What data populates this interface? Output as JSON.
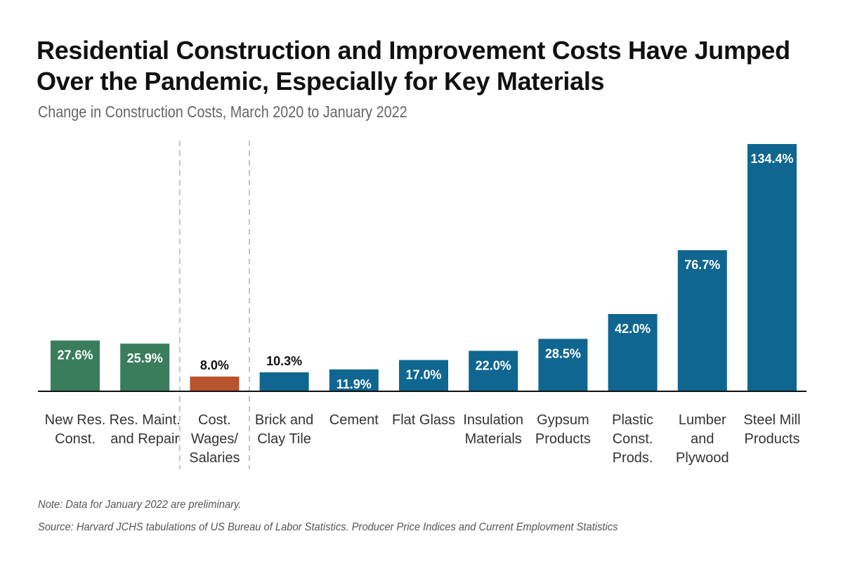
{
  "chart_data": {
    "type": "bar",
    "title": "Residential Construction and Improvement Costs Have Jumped Over the Pandemic, Especially for Key Materials",
    "subtitle": "Change in Construction Costs, March 2020 to January 2022",
    "categories": [
      [
        "New Res.",
        "Const."
      ],
      [
        "Res. Maint.",
        "and Repair"
      ],
      [
        "Cost.",
        "Wages/",
        "Salaries"
      ],
      [
        "Brick and",
        "Clay Tile"
      ],
      [
        "Cement"
      ],
      [
        "Flat Glass"
      ],
      [
        "Insulation",
        "Materials"
      ],
      [
        "Gypsum",
        "Products"
      ],
      [
        "Plastic",
        "Const.",
        "Prods."
      ],
      [
        "Lumber",
        "and",
        "Plywood"
      ],
      [
        "Steel Mill",
        "Products"
      ]
    ],
    "values": [
      27.6,
      25.9,
      8.0,
      10.3,
      11.9,
      17.0,
      22.0,
      28.5,
      42.0,
      76.7,
      134.4
    ],
    "value_labels": [
      "27.6%",
      "25.9%",
      "8.0%",
      "10.3%",
      "11.9%",
      "17.0%",
      "22.0%",
      "28.5%",
      "42.0%",
      "76.7%",
      "134.4%"
    ],
    "groups": [
      "construction",
      "construction",
      "labor",
      "materials",
      "materials",
      "materials",
      "materials",
      "materials",
      "materials",
      "materials",
      "materials"
    ],
    "group_colors": {
      "construction": "#3a7d5c",
      "labor": "#b8532e",
      "materials": "#0f6690"
    },
    "group_dividers_after": [
      1,
      2
    ],
    "ylim": [
      0,
      134.4
    ],
    "grid": false,
    "xlabel": "",
    "ylabel": "",
    "note": "Note: Data for January 2022 are preliminary.",
    "source": "Source: Harvard JCHS tabulations of US Bureau of Labor Statistics. Producer Price Indices and Current Emplovment Statistics"
  }
}
